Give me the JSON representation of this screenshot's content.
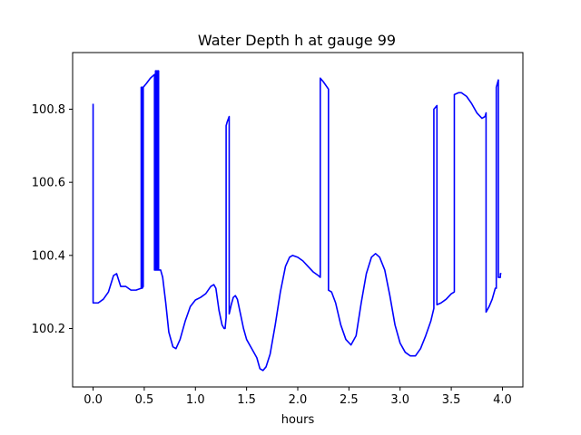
{
  "chart_data": {
    "type": "line",
    "title": "Water Depth h at gauge 99",
    "xlabel": "hours",
    "ylabel": "",
    "xlim": [
      -0.2,
      4.2
    ],
    "ylim": [
      100.04,
      100.955
    ],
    "grid": false,
    "legend": "none",
    "x_ticks": [
      0.0,
      0.5,
      1.0,
      1.5,
      2.0,
      2.5,
      3.0,
      3.5,
      4.0
    ],
    "x_tick_labels": [
      "0.0",
      "0.5",
      "1.0",
      "1.5",
      "2.0",
      "2.5",
      "3.0",
      "3.5",
      "4.0"
    ],
    "y_ticks": [
      100.2,
      100.4,
      100.6,
      100.8
    ],
    "y_tick_labels": [
      "100.2",
      "100.4",
      "100.6",
      "100.8"
    ],
    "series": [
      {
        "color": "#0000ff",
        "points": [
          [
            0.0,
            100.815
          ],
          [
            0.0,
            100.27
          ],
          [
            0.05,
            100.27
          ],
          [
            0.1,
            100.28
          ],
          [
            0.15,
            100.3
          ],
          [
            0.2,
            100.345
          ],
          [
            0.23,
            100.35
          ],
          [
            0.27,
            100.315
          ],
          [
            0.32,
            100.315
          ],
          [
            0.37,
            100.305
          ],
          [
            0.42,
            100.305
          ],
          [
            0.47,
            100.31
          ],
          [
            0.47,
            100.86
          ],
          [
            0.48,
            100.86
          ],
          [
            0.48,
            100.31
          ],
          [
            0.49,
            100.315
          ],
          [
            0.49,
            100.86
          ],
          [
            0.52,
            100.87
          ],
          [
            0.56,
            100.885
          ],
          [
            0.6,
            100.895
          ],
          [
            0.6,
            100.36
          ],
          [
            0.61,
            100.36
          ],
          [
            0.61,
            100.905
          ],
          [
            0.62,
            100.905
          ],
          [
            0.62,
            100.36
          ],
          [
            0.63,
            100.36
          ],
          [
            0.63,
            100.905
          ],
          [
            0.64,
            100.905
          ],
          [
            0.64,
            100.36
          ],
          [
            0.66,
            100.36
          ],
          [
            0.68,
            100.34
          ],
          [
            0.71,
            100.27
          ],
          [
            0.74,
            100.19
          ],
          [
            0.78,
            100.15
          ],
          [
            0.81,
            100.145
          ],
          [
            0.85,
            100.17
          ],
          [
            0.9,
            100.22
          ],
          [
            0.95,
            100.26
          ],
          [
            1.0,
            100.278
          ],
          [
            1.05,
            100.285
          ],
          [
            1.1,
            100.295
          ],
          [
            1.15,
            100.315
          ],
          [
            1.18,
            100.32
          ],
          [
            1.2,
            100.31
          ],
          [
            1.23,
            100.25
          ],
          [
            1.26,
            100.21
          ],
          [
            1.28,
            100.2
          ],
          [
            1.29,
            100.2
          ],
          [
            1.3,
            100.23
          ],
          [
            1.3,
            100.755
          ],
          [
            1.31,
            100.765
          ],
          [
            1.33,
            100.78
          ],
          [
            1.33,
            100.24
          ],
          [
            1.35,
            100.265
          ],
          [
            1.37,
            100.285
          ],
          [
            1.39,
            100.29
          ],
          [
            1.41,
            100.28
          ],
          [
            1.44,
            100.24
          ],
          [
            1.47,
            100.2
          ],
          [
            1.5,
            100.17
          ],
          [
            1.55,
            100.145
          ],
          [
            1.6,
            100.12
          ],
          [
            1.63,
            100.09
          ],
          [
            1.66,
            100.085
          ],
          [
            1.69,
            100.095
          ],
          [
            1.73,
            100.13
          ],
          [
            1.78,
            100.21
          ],
          [
            1.83,
            100.3
          ],
          [
            1.88,
            100.37
          ],
          [
            1.92,
            100.395
          ],
          [
            1.95,
            100.4
          ],
          [
            2.0,
            100.395
          ],
          [
            2.05,
            100.385
          ],
          [
            2.1,
            100.37
          ],
          [
            2.15,
            100.355
          ],
          [
            2.2,
            100.345
          ],
          [
            2.22,
            100.34
          ],
          [
            2.22,
            100.885
          ],
          [
            2.25,
            100.875
          ],
          [
            2.3,
            100.855
          ],
          [
            2.3,
            100.305
          ],
          [
            2.33,
            100.3
          ],
          [
            2.37,
            100.27
          ],
          [
            2.42,
            100.21
          ],
          [
            2.47,
            100.17
          ],
          [
            2.52,
            100.155
          ],
          [
            2.57,
            100.18
          ],
          [
            2.62,
            100.27
          ],
          [
            2.67,
            100.35
          ],
          [
            2.72,
            100.395
          ],
          [
            2.76,
            100.405
          ],
          [
            2.8,
            100.395
          ],
          [
            2.85,
            100.36
          ],
          [
            2.9,
            100.29
          ],
          [
            2.95,
            100.21
          ],
          [
            3.0,
            100.16
          ],
          [
            3.05,
            100.135
          ],
          [
            3.1,
            100.125
          ],
          [
            3.15,
            100.125
          ],
          [
            3.2,
            100.145
          ],
          [
            3.25,
            100.18
          ],
          [
            3.3,
            100.22
          ],
          [
            3.33,
            100.255
          ],
          [
            3.33,
            100.8
          ],
          [
            3.36,
            100.81
          ],
          [
            3.36,
            100.265
          ],
          [
            3.4,
            100.27
          ],
          [
            3.45,
            100.28
          ],
          [
            3.5,
            100.295
          ],
          [
            3.53,
            100.3
          ],
          [
            3.53,
            100.84
          ],
          [
            3.57,
            100.845
          ],
          [
            3.6,
            100.845
          ],
          [
            3.65,
            100.835
          ],
          [
            3.7,
            100.815
          ],
          [
            3.75,
            100.79
          ],
          [
            3.8,
            100.775
          ],
          [
            3.83,
            100.78
          ],
          [
            3.84,
            100.79
          ],
          [
            3.84,
            100.245
          ],
          [
            3.87,
            100.26
          ],
          [
            3.9,
            100.28
          ],
          [
            3.93,
            100.31
          ],
          [
            3.94,
            100.31
          ],
          [
            3.94,
            100.86
          ],
          [
            3.96,
            100.88
          ],
          [
            3.96,
            100.34
          ],
          [
            3.98,
            100.34
          ],
          [
            3.98,
            100.35
          ],
          [
            3.99,
            100.35
          ]
        ]
      }
    ]
  }
}
